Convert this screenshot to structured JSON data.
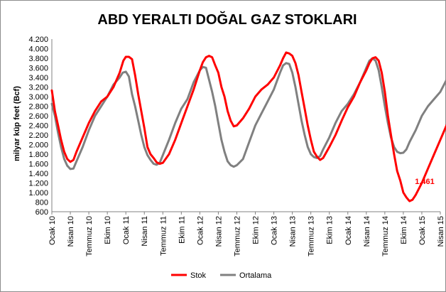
{
  "chart_data": {
    "type": "line",
    "title": "ABD YERALTI DOĞAL GAZ STOKLARI",
    "ylabel": "milyar küp feet (Bcf)",
    "xlabel": "",
    "ylim": [
      600,
      4200
    ],
    "y_ticks": [
      "4.200",
      "4.000",
      "3.800",
      "3.600",
      "3.400",
      "3.200",
      "3.000",
      "2.800",
      "2.600",
      "2.400",
      "2.200",
      "2.000",
      "1.800",
      "1.600",
      "1.400",
      "1.200",
      "1.000",
      "800",
      "600"
    ],
    "y_tick_values": [
      4200,
      4000,
      3800,
      3600,
      3400,
      3200,
      3000,
      2800,
      2600,
      2400,
      2200,
      2000,
      1800,
      1600,
      1400,
      1200,
      1000,
      800,
      600
    ],
    "x_ticks": [
      "Ocak 10",
      "Nisan 10",
      "Temmuz 10",
      "Ekim 10",
      "Ocak 11",
      "Nisan 11",
      "Temmuz 11",
      "Ekim 11",
      "Ocak 12",
      "Nisan 12",
      "Temmuz 12",
      "Ekim 12",
      "Ocak 13",
      "Nisan 13",
      "Temmuz 13",
      "Ekim 13",
      "Ocak 14",
      "Nisan 14",
      "Temmuz 14",
      "Ekim 14",
      "Ocak 15",
      "Nisan 15"
    ],
    "x_tick_months": [
      0,
      3,
      6,
      9,
      12,
      15,
      18,
      21,
      24,
      27,
      30,
      33,
      36,
      39,
      42,
      45,
      48,
      51,
      54,
      57,
      60,
      63
    ],
    "grid": false,
    "legend_placement": "bottom-center",
    "series": [
      {
        "name": "Stok",
        "color": "#ff0000",
        "points": [
          [
            0,
            3130
          ],
          [
            0.5,
            2700
          ],
          [
            1,
            2400
          ],
          [
            1.5,
            2100
          ],
          [
            2,
            1850
          ],
          [
            2.5,
            1700
          ],
          [
            3,
            1640
          ],
          [
            3.5,
            1680
          ],
          [
            4,
            1850
          ],
          [
            5,
            2150
          ],
          [
            6,
            2450
          ],
          [
            7,
            2700
          ],
          [
            8,
            2900
          ],
          [
            9,
            3000
          ],
          [
            10,
            3200
          ],
          [
            11,
            3500
          ],
          [
            11.6,
            3750
          ],
          [
            12,
            3830
          ],
          [
            12.5,
            3830
          ],
          [
            13,
            3780
          ],
          [
            13.5,
            3450
          ],
          [
            14,
            3050
          ],
          [
            14.5,
            2700
          ],
          [
            15,
            2350
          ],
          [
            15.5,
            1950
          ],
          [
            16,
            1800
          ],
          [
            16.5,
            1720
          ],
          [
            17,
            1630
          ],
          [
            17.5,
            1600
          ],
          [
            18,
            1620
          ],
          [
            19,
            1800
          ],
          [
            20,
            2100
          ],
          [
            21,
            2450
          ],
          [
            22,
            2800
          ],
          [
            23,
            3150
          ],
          [
            24,
            3550
          ],
          [
            24.5,
            3720
          ],
          [
            25,
            3820
          ],
          [
            25.5,
            3850
          ],
          [
            26,
            3820
          ],
          [
            26.5,
            3650
          ],
          [
            27,
            3500
          ],
          [
            27.5,
            3200
          ],
          [
            28,
            3000
          ],
          [
            28.5,
            2700
          ],
          [
            29,
            2500
          ],
          [
            29.5,
            2380
          ],
          [
            30,
            2400
          ],
          [
            31,
            2550
          ],
          [
            32,
            2750
          ],
          [
            33,
            3000
          ],
          [
            34,
            3150
          ],
          [
            35,
            3250
          ],
          [
            36,
            3400
          ],
          [
            37,
            3650
          ],
          [
            37.5,
            3800
          ],
          [
            38,
            3920
          ],
          [
            38.5,
            3900
          ],
          [
            39,
            3850
          ],
          [
            39.5,
            3700
          ],
          [
            40,
            3450
          ],
          [
            40.5,
            3100
          ],
          [
            41,
            2750
          ],
          [
            41.5,
            2400
          ],
          [
            42,
            2100
          ],
          [
            42.5,
            1850
          ],
          [
            43,
            1750
          ],
          [
            43.5,
            1680
          ],
          [
            44,
            1720
          ],
          [
            45,
            1950
          ],
          [
            46,
            2200
          ],
          [
            47,
            2500
          ],
          [
            48,
            2780
          ],
          [
            49,
            3000
          ],
          [
            50,
            3300
          ],
          [
            51,
            3550
          ],
          [
            51.5,
            3700
          ],
          [
            52,
            3800
          ],
          [
            52.5,
            3820
          ],
          [
            53,
            3750
          ],
          [
            53.5,
            3500
          ],
          [
            54,
            3100
          ],
          [
            54.5,
            2600
          ],
          [
            55,
            2200
          ],
          [
            55.5,
            1800
          ],
          [
            56,
            1450
          ],
          [
            56.5,
            1250
          ],
          [
            57,
            1000
          ],
          [
            57.5,
            900
          ],
          [
            58,
            820
          ],
          [
            58.5,
            850
          ],
          [
            59,
            950
          ],
          [
            60,
            1200
          ],
          [
            61,
            1500
          ],
          [
            62,
            1800
          ],
          [
            63,
            2100
          ],
          [
            64,
            2400
          ],
          [
            65,
            2700
          ],
          [
            66,
            3000
          ],
          [
            67,
            3300
          ],
          [
            67.5,
            3500
          ],
          [
            68,
            3600
          ],
          [
            68.3,
            3620
          ],
          [
            68.7,
            3500
          ],
          [
            69,
            3400
          ],
          [
            69.5,
            3350
          ],
          [
            70,
            3200
          ],
          [
            70.5,
            2700
          ],
          [
            71,
            2450
          ],
          [
            71.5,
            2200
          ],
          [
            72,
            1850
          ],
          [
            72.3,
            1600
          ],
          [
            72.7,
            1480
          ],
          [
            73,
            1470
          ],
          [
            73.5,
            1461
          ]
        ]
      },
      {
        "name": "Ortalama",
        "color": "#808080",
        "points": [
          [
            0,
            2850
          ],
          [
            0.5,
            2600
          ],
          [
            1,
            2250
          ],
          [
            1.5,
            1950
          ],
          [
            2,
            1700
          ],
          [
            2.5,
            1560
          ],
          [
            3,
            1490
          ],
          [
            3.5,
            1500
          ],
          [
            4,
            1650
          ],
          [
            5,
            1950
          ],
          [
            6,
            2300
          ],
          [
            7,
            2600
          ],
          [
            8,
            2800
          ],
          [
            9,
            3000
          ],
          [
            10,
            3250
          ],
          [
            11,
            3400
          ],
          [
            11.5,
            3500
          ],
          [
            12,
            3520
          ],
          [
            12.5,
            3420
          ],
          [
            13,
            3050
          ],
          [
            13.5,
            2800
          ],
          [
            14,
            2500
          ],
          [
            14.5,
            2200
          ],
          [
            15,
            1950
          ],
          [
            15.5,
            1780
          ],
          [
            16,
            1680
          ],
          [
            16.5,
            1600
          ],
          [
            17,
            1580
          ],
          [
            17.5,
            1620
          ],
          [
            18,
            1780
          ],
          [
            19,
            2100
          ],
          [
            20,
            2450
          ],
          [
            21,
            2750
          ],
          [
            22,
            2950
          ],
          [
            23,
            3300
          ],
          [
            24,
            3550
          ],
          [
            24.5,
            3620
          ],
          [
            25,
            3600
          ],
          [
            25.5,
            3350
          ],
          [
            26,
            3100
          ],
          [
            26.5,
            2800
          ],
          [
            27,
            2450
          ],
          [
            27.5,
            2100
          ],
          [
            28,
            1850
          ],
          [
            28.5,
            1650
          ],
          [
            29,
            1570
          ],
          [
            29.5,
            1540
          ],
          [
            30,
            1570
          ],
          [
            31,
            1700
          ],
          [
            32,
            2050
          ],
          [
            33,
            2400
          ],
          [
            34,
            2650
          ],
          [
            35,
            2900
          ],
          [
            36,
            3150
          ],
          [
            37,
            3500
          ],
          [
            37.5,
            3650
          ],
          [
            38,
            3700
          ],
          [
            38.5,
            3680
          ],
          [
            39,
            3500
          ],
          [
            39.5,
            3200
          ],
          [
            40,
            2850
          ],
          [
            40.5,
            2500
          ],
          [
            41,
            2200
          ],
          [
            41.5,
            1950
          ],
          [
            42,
            1800
          ],
          [
            42.5,
            1740
          ],
          [
            43,
            1720
          ],
          [
            43.5,
            1760
          ],
          [
            44,
            1900
          ],
          [
            45,
            2150
          ],
          [
            46,
            2450
          ],
          [
            47,
            2700
          ],
          [
            48,
            2850
          ],
          [
            49,
            3050
          ],
          [
            50,
            3300
          ],
          [
            51,
            3600
          ],
          [
            51.5,
            3750
          ],
          [
            52,
            3800
          ],
          [
            52.5,
            3750
          ],
          [
            53,
            3550
          ],
          [
            53.5,
            3200
          ],
          [
            54,
            2800
          ],
          [
            54.5,
            2450
          ],
          [
            55,
            2150
          ],
          [
            55.5,
            1950
          ],
          [
            56,
            1850
          ],
          [
            56.5,
            1820
          ],
          [
            57,
            1830
          ],
          [
            57.5,
            1900
          ],
          [
            58,
            2050
          ],
          [
            59,
            2300
          ],
          [
            60,
            2600
          ],
          [
            61,
            2800
          ],
          [
            62,
            2950
          ],
          [
            63,
            3100
          ],
          [
            64,
            3350
          ],
          [
            65,
            3550
          ],
          [
            65.5,
            3800
          ],
          [
            66,
            3850
          ],
          [
            66.5,
            3830
          ],
          [
            67,
            3700
          ],
          [
            67.5,
            3400
          ],
          [
            68,
            3000
          ],
          [
            68.5,
            2650
          ],
          [
            69,
            2400
          ],
          [
            69.5,
            2200
          ],
          [
            70,
            1900
          ],
          [
            70.5,
            1750
          ],
          [
            71,
            1700
          ],
          [
            71.5,
            1680
          ],
          [
            72,
            1660
          ]
        ]
      }
    ],
    "annotations": [
      {
        "text": "1.461",
        "series": "Stok",
        "color": "#ff0000"
      }
    ]
  }
}
